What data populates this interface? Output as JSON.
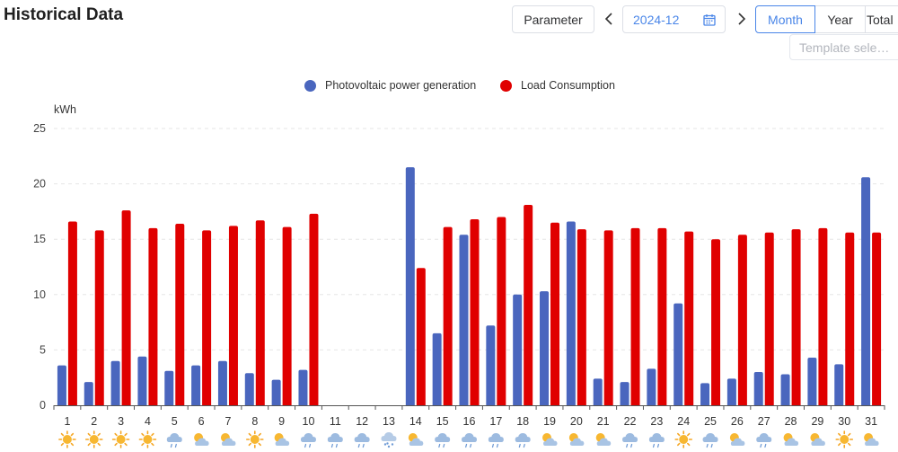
{
  "header": {
    "title": "Historical Data",
    "parameter_label": "Parameter",
    "date_value": "2024-12",
    "tabs": [
      {
        "label": "Month",
        "active": true
      },
      {
        "label": "Year",
        "active": false
      },
      {
        "label": "Total",
        "active": false
      }
    ],
    "template_placeholder": "Template sele…"
  },
  "colors": {
    "pv": "#4a66be",
    "load": "#e00000",
    "accent": "#4a86e8"
  },
  "chart_data": {
    "type": "bar",
    "ylabel": "kWh",
    "ylim": [
      0,
      25
    ],
    "yticks": [
      0,
      5,
      10,
      15,
      20,
      25
    ],
    "grid": true,
    "legend_position": "top-center",
    "categories": [
      "1",
      "2",
      "3",
      "4",
      "5",
      "6",
      "7",
      "8",
      "9",
      "10",
      "11",
      "12",
      "13",
      "14",
      "15",
      "16",
      "17",
      "18",
      "19",
      "20",
      "21",
      "22",
      "23",
      "24",
      "25",
      "26",
      "27",
      "28",
      "29",
      "30",
      "31"
    ],
    "weather_icons": [
      "sunny",
      "sunny",
      "sunny",
      "sunny",
      "light-rain",
      "partly-cloudy",
      "partly-cloudy",
      "sunny",
      "partly-cloudy",
      "light-rain",
      "light-rain",
      "light-rain",
      "snow",
      "partly-cloudy",
      "light-rain",
      "light-rain",
      "light-rain",
      "light-rain",
      "partly-cloudy",
      "partly-cloudy",
      "partly-cloudy",
      "light-rain",
      "light-rain",
      "sunny",
      "light-rain",
      "partly-cloudy",
      "light-rain",
      "partly-cloudy",
      "partly-cloudy",
      "sunny",
      "partly-cloudy"
    ],
    "series": [
      {
        "name": "Photovoltaic power generation",
        "color": "#4a66be",
        "values": [
          3.6,
          2.1,
          4.0,
          4.4,
          3.1,
          3.6,
          4.0,
          2.9,
          2.3,
          3.2,
          0,
          0,
          0,
          21.5,
          6.5,
          15.4,
          7.2,
          10.0,
          10.3,
          16.6,
          2.4,
          2.1,
          3.3,
          9.2,
          2.0,
          2.4,
          3.0,
          2.8,
          4.3,
          3.7,
          20.6
        ]
      },
      {
        "name": "Load Consumption",
        "color": "#e00000",
        "values": [
          16.6,
          15.8,
          17.6,
          16.0,
          16.4,
          15.8,
          16.2,
          16.7,
          16.1,
          17.3,
          0,
          0,
          0,
          12.4,
          16.1,
          16.8,
          17.0,
          18.1,
          16.5,
          15.9,
          15.8,
          16.0,
          16.0,
          15.7,
          15.0,
          15.4,
          15.6,
          15.9,
          16.0,
          15.6,
          15.6
        ]
      }
    ]
  }
}
